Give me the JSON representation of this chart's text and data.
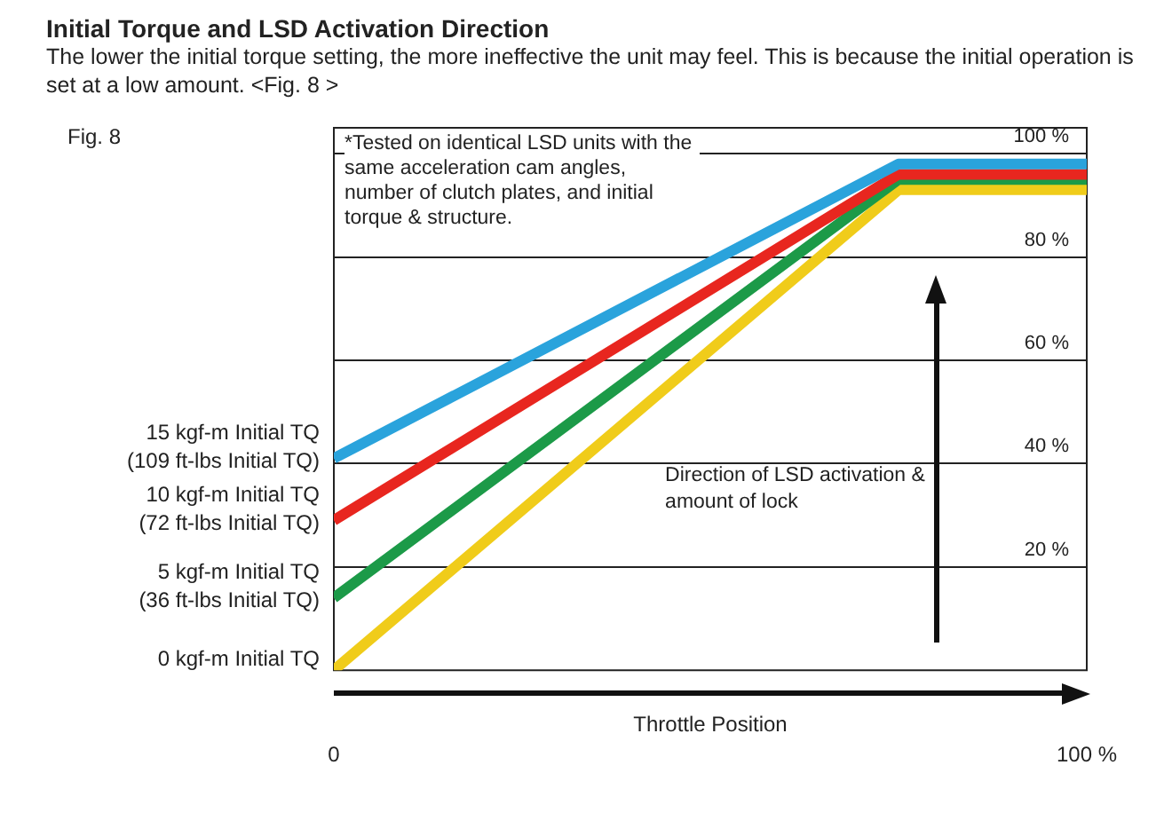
{
  "chart_data": {
    "type": "line",
    "title": "Initial Torque and LSD Activation Direction",
    "subtitle": "The lower the initial torque setting, the more ineffective the unit may feel. This is because the initial operation is set at a low amount. <Fig. 8 >",
    "xlabel": "Throttle Position",
    "annotations": [
      "Fig. 8",
      "*Tested on identical LSD units with the same acceleration cam angles, number of clutch plates, and initial torque & structure.",
      "Direction of LSD activation & amount of lock"
    ],
    "x": [
      0,
      75,
      100
    ],
    "series": [
      {
        "name": "15 kgf-m Initial TQ (109 ft-lbs Initial TQ)",
        "color": "#2aa3dc",
        "values": [
          41,
          98,
          98
        ]
      },
      {
        "name": "10 kgf-m Initial TQ (72 ft-lbs Initial TQ)",
        "color": "#e8261f",
        "values": [
          29,
          96,
          96
        ]
      },
      {
        "name": "5 kgf-m Initial TQ (36 ft-lbs Initial TQ)",
        "color": "#1c9a48",
        "values": [
          14,
          95,
          95
        ]
      },
      {
        "name": "0 kgf-m Initial TQ",
        "color": "#f0cc1a",
        "values": [
          0,
          93,
          93
        ]
      }
    ],
    "xlim": [
      0,
      100
    ],
    "xticks": [
      0,
      {
        "value": 100,
        "label": "100 %"
      }
    ],
    "ylim": [
      0,
      105
    ],
    "yticks": [
      {
        "value": 20,
        "label": "20 %"
      },
      {
        "value": 40,
        "label": "40 %"
      },
      {
        "value": 60,
        "label": "60 %"
      },
      {
        "value": 80,
        "label": "80 %"
      },
      {
        "value": 100,
        "label": "100 %"
      }
    ],
    "grid": "y",
    "legend": false,
    "marker": "none",
    "line_style": "solid"
  }
}
